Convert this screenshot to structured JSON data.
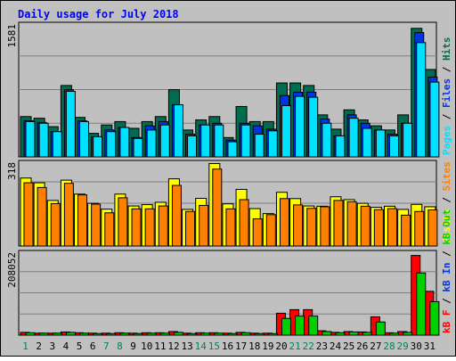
{
  "chart_data": [
    {
      "type": "bar",
      "title": "Daily usage for July 2018",
      "categories": [
        "1",
        "2",
        "3",
        "4",
        "5",
        "6",
        "7",
        "8",
        "9",
        "10",
        "11",
        "12",
        "13",
        "14",
        "15",
        "16",
        "17",
        "18",
        "19",
        "20",
        "21",
        "22",
        "23",
        "24",
        "25",
        "26",
        "27",
        "28",
        "29",
        "30",
        "31"
      ],
      "weekend_days": [
        "1",
        "7",
        "8",
        "14",
        "15",
        "21",
        "22",
        "28",
        "29"
      ],
      "ymax_label": "1581",
      "ylim": [
        0,
        1581
      ],
      "legend": [
        "Pages",
        "Files",
        "Hits"
      ],
      "series": [
        {
          "name": "Hits",
          "color": "#006c4f",
          "values": [
            480,
            460,
            360,
            850,
            470,
            280,
            380,
            420,
            340,
            420,
            480,
            800,
            320,
            440,
            480,
            230,
            600,
            420,
            420,
            880,
            880,
            850,
            500,
            330,
            560,
            440,
            370,
            320,
            500,
            1530,
            1040
          ]
        },
        {
          "name": "Files",
          "color": "#0034e5",
          "values": [
            430,
            410,
            300,
            800,
            430,
            240,
            320,
            350,
            230,
            370,
            420,
            620,
            270,
            380,
            400,
            200,
            400,
            370,
            330,
            730,
            770,
            770,
            450,
            250,
            500,
            400,
            320,
            270,
            400,
            1480,
            950
          ]
        },
        {
          "name": "Pages",
          "color": "#00e0ff",
          "values": [
            420,
            400,
            300,
            780,
            420,
            240,
            300,
            350,
            220,
            320,
            380,
            620,
            250,
            380,
            380,
            180,
            380,
            270,
            310,
            610,
            720,
            710,
            400,
            250,
            460,
            340,
            320,
            250,
            400,
            1360,
            890
          ]
        }
      ]
    },
    {
      "type": "bar",
      "ymax_label": "318",
      "ylim": [
        0,
        318
      ],
      "legend": [
        "Visits",
        "Sites"
      ],
      "series": [
        {
          "name": "Visits",
          "color": "#ffff00",
          "values": [
            258,
            240,
            173,
            250,
            197,
            162,
            140,
            197,
            152,
            157,
            166,
            255,
            139,
            181,
            313,
            160,
            215,
            142,
            123,
            204,
            180,
            152,
            151,
            187,
            176,
            162,
            147,
            151,
            139,
            158,
            149
          ]
        },
        {
          "name": "Sites",
          "color": "#ff8000",
          "values": [
            240,
            222,
            161,
            238,
            194,
            159,
            126,
            183,
            141,
            141,
            152,
            230,
            131,
            154,
            292,
            141,
            176,
            103,
            119,
            180,
            156,
            143,
            149,
            173,
            168,
            151,
            138,
            142,
            117,
            131,
            137
          ]
        }
      ]
    },
    {
      "type": "bar",
      "ymax_label": "208052",
      "ylim": [
        0,
        208052
      ],
      "legend": [
        "kB F",
        "kB In",
        "kB Out"
      ],
      "series": [
        {
          "name": "kB F",
          "color": "#ff0000",
          "values": [
            7000,
            5000,
            5000,
            8000,
            6000,
            5000,
            5000,
            6000,
            5000,
            6000,
            6000,
            9000,
            5000,
            6000,
            6000,
            5000,
            7000,
            5000,
            5000,
            55000,
            64000,
            64000,
            11000,
            7000,
            9000,
            8000,
            46000,
            6000,
            9000,
            200000,
            110000
          ]
        },
        {
          "name": "kB In",
          "color": "#0034e5",
          "values": [
            0,
            0,
            0,
            0,
            0,
            0,
            0,
            0,
            0,
            0,
            0,
            0,
            0,
            0,
            0,
            0,
            0,
            0,
            0,
            0,
            0,
            0,
            0,
            0,
            0,
            0,
            0,
            0,
            0,
            0,
            0
          ]
        },
        {
          "name": "kB Out",
          "color": "#00d000",
          "values": [
            6000,
            5000,
            5000,
            7000,
            5000,
            4000,
            4000,
            5000,
            4000,
            5000,
            5000,
            7000,
            4000,
            5000,
            5000,
            4000,
            6000,
            4000,
            4000,
            42000,
            48000,
            48000,
            9000,
            6000,
            8000,
            7000,
            33000,
            5000,
            7000,
            156000,
            84000
          ]
        }
      ]
    }
  ]
}
